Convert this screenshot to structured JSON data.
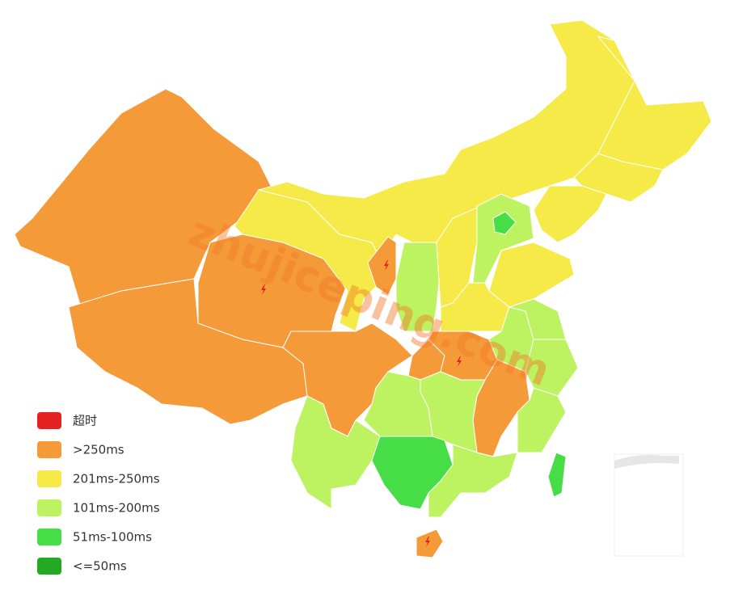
{
  "watermark": "zhujiceping.com",
  "legend": [
    {
      "label": "超时",
      "color": "#e42222"
    },
    {
      "label": ">250ms",
      "color": "#f59a38"
    },
    {
      "label": "201ms-250ms",
      "color": "#f5ea47"
    },
    {
      "label": "101ms-200ms",
      "color": "#bdf261"
    },
    {
      "label": "51ms-100ms",
      "color": "#46dd46"
    },
    {
      "label": "<=50ms",
      "color": "#23aa23"
    }
  ]
}
